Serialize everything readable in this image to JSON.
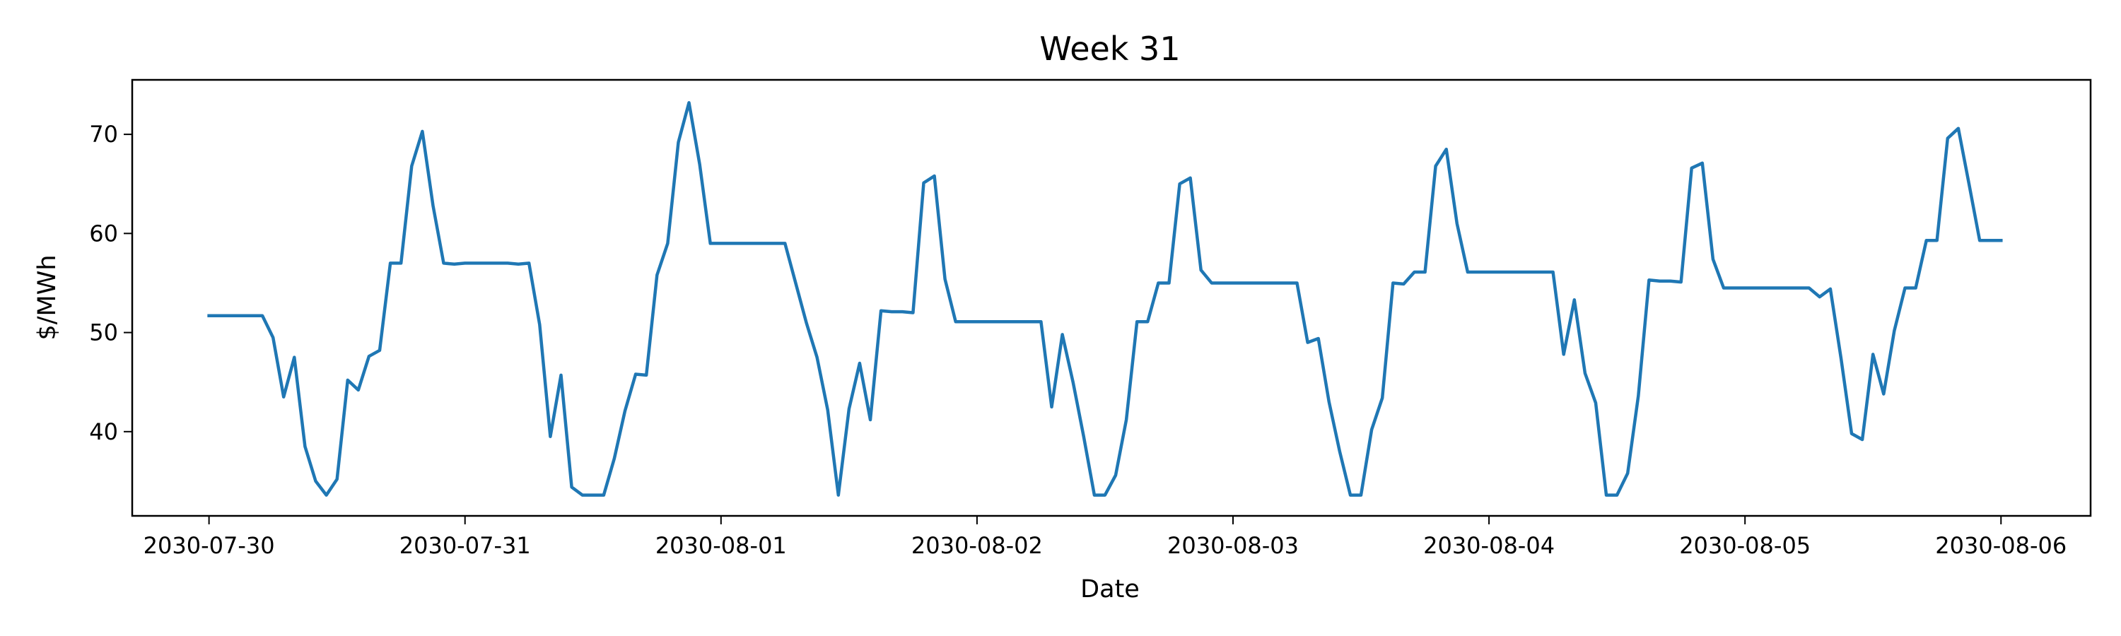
{
  "chart_data": {
    "type": "line",
    "title": "Week 31",
    "xlabel": "Date",
    "ylabel": "$/MWh",
    "x_ticks": [
      "2030-07-30",
      "2030-07-31",
      "2030-08-01",
      "2030-08-02",
      "2030-08-03",
      "2030-08-04",
      "2030-08-05",
      "2030-08-06"
    ],
    "y_ticks": [
      40,
      50,
      60,
      70
    ],
    "xlim_days": [
      -0.3,
      7.35
    ],
    "ylim": [
      31.5,
      75.5
    ],
    "grid": false,
    "legend": "none",
    "series": [
      {
        "color": "#1f77b4",
        "points": [
          [
            "2030-07-30 00:00",
            51.7
          ],
          [
            "2030-07-30 02:00",
            51.7
          ],
          [
            "2030-07-30 04:00",
            51.7
          ],
          [
            "2030-07-30 05:00",
            51.7
          ],
          [
            "2030-07-30 06:00",
            49.5
          ],
          [
            "2030-07-30 07:00",
            43.5
          ],
          [
            "2030-07-30 08:00",
            47.5
          ],
          [
            "2030-07-30 09:00",
            38.5
          ],
          [
            "2030-07-30 10:00",
            35.0
          ],
          [
            "2030-07-30 11:00",
            33.6
          ],
          [
            "2030-07-30 12:00",
            35.2
          ],
          [
            "2030-07-30 13:00",
            45.2
          ],
          [
            "2030-07-30 14:00",
            44.2
          ],
          [
            "2030-07-30 15:00",
            47.6
          ],
          [
            "2030-07-30 16:00",
            48.2
          ],
          [
            "2030-07-30 17:00",
            57.0
          ],
          [
            "2030-07-30 18:00",
            57.0
          ],
          [
            "2030-07-30 19:00",
            66.8
          ],
          [
            "2030-07-30 20:00",
            70.3
          ],
          [
            "2030-07-30 21:00",
            62.8
          ],
          [
            "2030-07-30 22:00",
            57.0
          ],
          [
            "2030-07-30 23:00",
            56.9
          ],
          [
            "2030-07-31 00:00",
            57.0
          ],
          [
            "2030-07-31 04:00",
            57.0
          ],
          [
            "2030-07-31 05:00",
            56.9
          ],
          [
            "2030-07-31 06:00",
            57.0
          ],
          [
            "2030-07-31 07:00",
            50.8
          ],
          [
            "2030-07-31 08:00",
            39.5
          ],
          [
            "2030-07-31 09:00",
            45.7
          ],
          [
            "2030-07-31 10:00",
            34.4
          ],
          [
            "2030-07-31 11:00",
            33.6
          ],
          [
            "2030-07-31 12:00",
            33.6
          ],
          [
            "2030-07-31 13:00",
            33.6
          ],
          [
            "2030-07-31 14:00",
            37.3
          ],
          [
            "2030-07-31 15:00",
            42.1
          ],
          [
            "2030-07-31 16:00",
            45.8
          ],
          [
            "2030-07-31 17:00",
            45.7
          ],
          [
            "2030-07-31 18:00",
            55.8
          ],
          [
            "2030-07-31 19:00",
            59.0
          ],
          [
            "2030-07-31 20:00",
            69.2
          ],
          [
            "2030-07-31 21:00",
            73.2
          ],
          [
            "2030-07-31 22:00",
            67.0
          ],
          [
            "2030-07-31 23:00",
            59.0
          ],
          [
            "2030-08-01 00:00",
            59.0
          ],
          [
            "2030-08-01 06:00",
            59.0
          ],
          [
            "2030-08-01 07:00",
            55.0
          ],
          [
            "2030-08-01 08:00",
            51.0
          ],
          [
            "2030-08-01 09:00",
            47.5
          ],
          [
            "2030-08-01 10:00",
            42.2
          ],
          [
            "2030-08-01 11:00",
            33.6
          ],
          [
            "2030-08-01 12:00",
            42.3
          ],
          [
            "2030-08-01 13:00",
            46.9
          ],
          [
            "2030-08-01 14:00",
            41.2
          ],
          [
            "2030-08-01 15:00",
            52.2
          ],
          [
            "2030-08-01 16:00",
            52.1
          ],
          [
            "2030-08-01 17:00",
            52.1
          ],
          [
            "2030-08-01 18:00",
            52.0
          ],
          [
            "2030-08-01 19:00",
            65.1
          ],
          [
            "2030-08-01 20:00",
            65.8
          ],
          [
            "2030-08-01 21:00",
            55.4
          ],
          [
            "2030-08-01 22:00",
            51.1
          ],
          [
            "2030-08-01 23:00",
            51.1
          ],
          [
            "2030-08-02 00:00",
            51.1
          ],
          [
            "2030-08-02 06:00",
            51.1
          ],
          [
            "2030-08-02 07:00",
            42.5
          ],
          [
            "2030-08-02 08:00",
            49.8
          ],
          [
            "2030-08-02 09:00",
            45.0
          ],
          [
            "2030-08-02 10:00",
            39.5
          ],
          [
            "2030-08-02 11:00",
            33.6
          ],
          [
            "2030-08-02 12:00",
            33.6
          ],
          [
            "2030-08-02 13:00",
            35.6
          ],
          [
            "2030-08-02 14:00",
            41.2
          ],
          [
            "2030-08-02 15:00",
            51.1
          ],
          [
            "2030-08-02 16:00",
            51.1
          ],
          [
            "2030-08-02 17:00",
            55.0
          ],
          [
            "2030-08-02 18:00",
            55.0
          ],
          [
            "2030-08-02 19:00",
            65.0
          ],
          [
            "2030-08-02 20:00",
            65.6
          ],
          [
            "2030-08-02 21:00",
            56.3
          ],
          [
            "2030-08-02 22:00",
            55.0
          ],
          [
            "2030-08-02 23:00",
            55.0
          ],
          [
            "2030-08-03 00:00",
            55.0
          ],
          [
            "2030-08-03 06:00",
            55.0
          ],
          [
            "2030-08-03 07:00",
            49.0
          ],
          [
            "2030-08-03 08:00",
            49.4
          ],
          [
            "2030-08-03 09:00",
            43.0
          ],
          [
            "2030-08-03 10:00",
            38.0
          ],
          [
            "2030-08-03 11:00",
            33.6
          ],
          [
            "2030-08-03 12:00",
            33.6
          ],
          [
            "2030-08-03 13:00",
            40.2
          ],
          [
            "2030-08-03 14:00",
            43.4
          ],
          [
            "2030-08-03 15:00",
            55.0
          ],
          [
            "2030-08-03 16:00",
            54.9
          ],
          [
            "2030-08-03 17:00",
            56.1
          ],
          [
            "2030-08-03 18:00",
            56.1
          ],
          [
            "2030-08-03 19:00",
            66.8
          ],
          [
            "2030-08-03 20:00",
            68.5
          ],
          [
            "2030-08-03 21:00",
            61.0
          ],
          [
            "2030-08-03 22:00",
            56.1
          ],
          [
            "2030-08-03 23:00",
            56.1
          ],
          [
            "2030-08-04 00:00",
            56.1
          ],
          [
            "2030-08-04 06:00",
            56.1
          ],
          [
            "2030-08-04 07:00",
            47.8
          ],
          [
            "2030-08-04 08:00",
            53.3
          ],
          [
            "2030-08-04 09:00",
            45.9
          ],
          [
            "2030-08-04 10:00",
            42.9
          ],
          [
            "2030-08-04 11:00",
            33.6
          ],
          [
            "2030-08-04 12:00",
            33.6
          ],
          [
            "2030-08-04 13:00",
            35.8
          ],
          [
            "2030-08-04 14:00",
            43.6
          ],
          [
            "2030-08-04 15:00",
            55.3
          ],
          [
            "2030-08-04 16:00",
            55.2
          ],
          [
            "2030-08-04 17:00",
            55.2
          ],
          [
            "2030-08-04 18:00",
            55.1
          ],
          [
            "2030-08-04 19:00",
            66.6
          ],
          [
            "2030-08-04 20:00",
            67.1
          ],
          [
            "2030-08-04 21:00",
            57.4
          ],
          [
            "2030-08-04 22:00",
            54.5
          ],
          [
            "2030-08-04 23:00",
            54.5
          ],
          [
            "2030-08-05 00:00",
            54.5
          ],
          [
            "2030-08-05 06:00",
            54.5
          ],
          [
            "2030-08-05 07:00",
            53.6
          ],
          [
            "2030-08-05 08:00",
            54.4
          ],
          [
            "2030-08-05 09:00",
            47.4
          ],
          [
            "2030-08-05 10:00",
            39.8
          ],
          [
            "2030-08-05 11:00",
            39.2
          ],
          [
            "2030-08-05 12:00",
            47.8
          ],
          [
            "2030-08-05 13:00",
            43.8
          ],
          [
            "2030-08-05 14:00",
            50.2
          ],
          [
            "2030-08-05 15:00",
            54.5
          ],
          [
            "2030-08-05 16:00",
            54.5
          ],
          [
            "2030-08-05 17:00",
            59.3
          ],
          [
            "2030-08-05 18:00",
            59.3
          ],
          [
            "2030-08-05 19:00",
            69.6
          ],
          [
            "2030-08-05 20:00",
            70.6
          ],
          [
            "2030-08-05 21:00",
            65.0
          ],
          [
            "2030-08-05 22:00",
            59.3
          ],
          [
            "2030-08-05 23:00",
            59.3
          ],
          [
            "2030-08-06 00:00",
            59.3
          ]
        ]
      }
    ]
  }
}
